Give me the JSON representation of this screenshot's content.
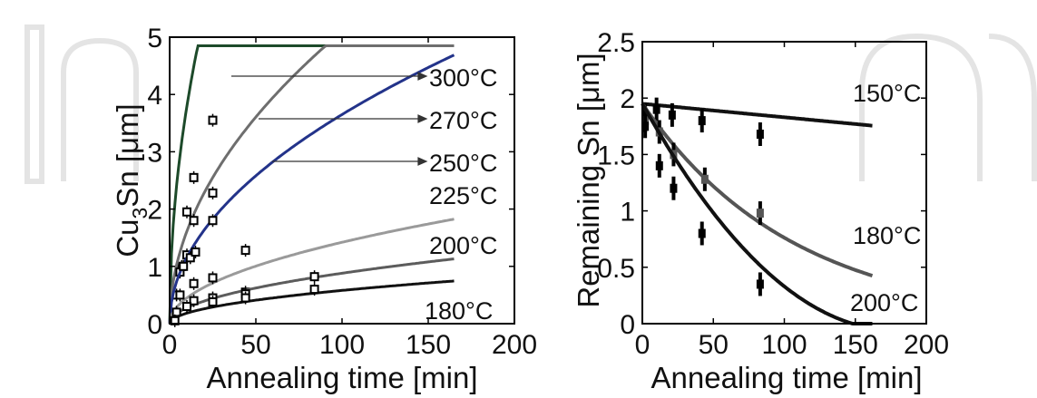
{
  "chart_data": [
    {
      "type": "line",
      "ylabel_main": "Cu",
      "ylabel_sub": "3",
      "ylabel_rest": "Sn [μm]",
      "xlabel": "Annealing time [min]",
      "xlim": [
        0,
        200
      ],
      "ylim": [
        0,
        5
      ],
      "xticks": [
        "0",
        "50",
        "100",
        "150",
        "200"
      ],
      "yticks": [
        "0",
        "1",
        "2",
        "3",
        "4",
        "5"
      ],
      "grid": false,
      "series": [
        {
          "name": "300°C",
          "color": "#1d4a2a",
          "model": "sqrt",
          "k": 1.2,
          "cap": 4.85,
          "xmax": 165,
          "points": [
            [
              4,
              0.5
            ],
            [
              7,
              1.0
            ],
            [
              10,
              1.95
            ],
            [
              14,
              2.55
            ],
            [
              25,
              3.55
            ]
          ]
        },
        {
          "name": "270°C",
          "color": "#6e6e6e",
          "model": "sqrt",
          "k": 0.51,
          "cap": 4.85,
          "xmax": 165,
          "points": [
            [
              6,
              0.9
            ],
            [
              10,
              1.2
            ],
            [
              14,
              1.8
            ],
            [
              25,
              2.28
            ]
          ]
        },
        {
          "name": "250°C",
          "color": "#23338a",
          "model": "sqrt",
          "k": 0.365,
          "cap": 4.85,
          "xmax": 165,
          "points": [
            [
              8,
              1.0
            ],
            [
              12,
              1.15
            ],
            [
              15,
              1.25
            ],
            [
              25,
              1.8
            ],
            [
              44,
              1.28
            ]
          ]
        },
        {
          "name": "225°C",
          "color": "#9a9a9a",
          "model": "sqrt",
          "k": 0.142,
          "cap": 4.85,
          "xmax": 165,
          "points": [
            [
              6,
              0.5
            ],
            [
              14,
              0.7
            ],
            [
              25,
              0.8
            ],
            [
              44,
              0.55
            ]
          ]
        },
        {
          "name": "200°C",
          "color": "#5c5c5c",
          "model": "sqrt",
          "k": 0.088,
          "cap": 4.85,
          "xmax": 165,
          "points": [
            [
              4,
              0.2
            ],
            [
              14,
              0.4
            ],
            [
              25,
              0.45
            ],
            [
              44,
              0.52
            ],
            [
              84,
              0.82
            ]
          ]
        },
        {
          "name": "180°C",
          "color": "#111111",
          "model": "sqrt",
          "k": 0.058,
          "cap": 4.85,
          "xmax": 165,
          "points": [
            [
              3,
              0.05
            ],
            [
              10,
              0.3
            ],
            [
              25,
              0.38
            ],
            [
              44,
              0.45
            ],
            [
              84,
              0.6
            ]
          ]
        }
      ]
    },
    {
      "type": "line",
      "ylabel": "Remaining Sn [μm]",
      "xlabel": "Annealing time [min]",
      "xlim": [
        0,
        200
      ],
      "ylim": [
        0,
        2.5
      ],
      "xticks": [
        "0",
        "50",
        "100",
        "150",
        "200"
      ],
      "yticks": [
        "0",
        "0.5",
        "1",
        "1.5",
        "2",
        "2.5"
      ],
      "grid": false,
      "series": [
        {
          "name": "150°C",
          "color": "#111111",
          "model": "linear",
          "y0": 1.95,
          "slope": -0.0012,
          "xmax": 162,
          "points": [
            [
              2,
              1.85
            ],
            [
              10,
              1.9
            ],
            [
              21,
              1.85
            ],
            [
              42,
              1.8
            ],
            [
              83,
              1.68
            ]
          ]
        },
        {
          "name": "180°C",
          "color": "#555555",
          "model": "exp",
          "y0": 1.95,
          "rate": 0.0094,
          "xmax": 162,
          "points": [
            [
              2,
              1.8
            ],
            [
              12,
              1.7
            ],
            [
              22,
              1.5
            ],
            [
              44,
              1.28
            ],
            [
              83,
              0.98
            ]
          ]
        },
        {
          "name": "200°C",
          "color": "#111111",
          "model": "quad",
          "y0": 1.95,
          "b": -0.0225,
          "c": 6.3e-05,
          "xmax": 162,
          "points": [
            [
              2,
              1.75
            ],
            [
              12,
              1.4
            ],
            [
              22,
              1.2
            ],
            [
              42,
              0.8
            ],
            [
              83,
              0.35
            ]
          ]
        }
      ]
    }
  ]
}
